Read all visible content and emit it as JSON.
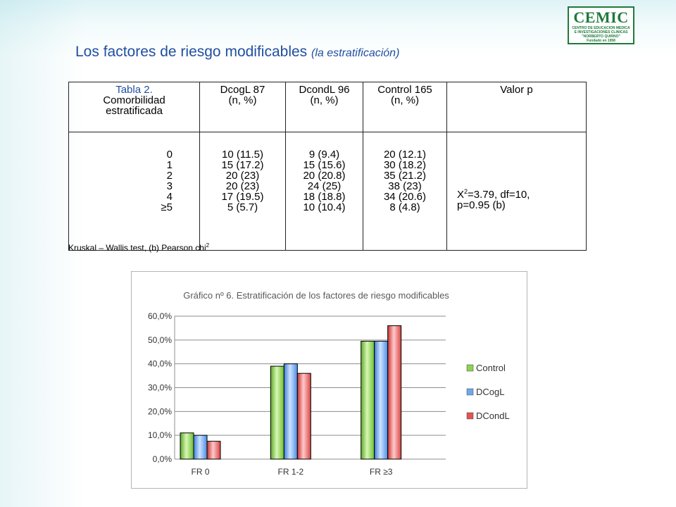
{
  "slide": {
    "title": "Los factores de riesgo modificables",
    "subtitle": "(la estratificación)"
  },
  "logo": {
    "name": "CEMIC",
    "line1": "CENTRO DE EDUCACION MEDICA",
    "line2": "E INVESTIGACIONES CLINICAS",
    "line3": "\"NORBERTO QUIRNO\"",
    "line4": "Fundado en 1958"
  },
  "table": {
    "header": {
      "c1_line1": "Tabla 2.",
      "c1_line2": "Comorbilidad",
      "c1_line3": "estratificada",
      "c2_line1": "DcogL 87",
      "c2_line2": "(n, %)",
      "c3_line1": "DcondL 96",
      "c3_line2": "(n, %)",
      "c4_line1": "Control 165",
      "c4_line2": "(n, %)",
      "c5": "Valor p"
    },
    "rows": [
      {
        "k": "0",
        "a": "10 (11.5)",
        "b": "9 (9.4)",
        "c": "20 (12.1)"
      },
      {
        "k": "1",
        "a": "15 (17.2)",
        "b": "15 (15.6)",
        "c": "30 (18.2)"
      },
      {
        "k": "2",
        "a": "20 (23)",
        "b": "20 (20.8)",
        "c": "35 (21.2)"
      },
      {
        "k": "3",
        "a": "20 (23)",
        "b": "24 (25)",
        "c": "38 (23)"
      },
      {
        "k": "4",
        "a": "17 (19.5)",
        "b": "18 (18.8)",
        "c": "34 (20.6)"
      },
      {
        "k": "≥5",
        "a": "5 (5.7)",
        "b": "10 (10.4)",
        "c": "8 (4.8)"
      }
    ],
    "p_line1_prefix": "X",
    "p_line1_sup": "2",
    "p_line1_rest": "=3.79, df=10,",
    "p_line2": "p=0.95 (b)",
    "footnote_main": "Kruskal – Wallis test, (b) Pearson chi",
    "footnote_sup": "2"
  },
  "chart_data": {
    "type": "bar",
    "title": "Gráfico nº 6. Estratificación de los factores de riesgo modificables",
    "categories": [
      "FR 0",
      "FR 1-2",
      "FR ≥3"
    ],
    "series": [
      {
        "name": "Control",
        "values": [
          11.0,
          39.0,
          49.5
        ],
        "color": "#8fd14f"
      },
      {
        "name": "DCogL",
        "values": [
          10.0,
          40.0,
          49.5
        ],
        "color": "#6fa8ef"
      },
      {
        "name": "DCondL",
        "values": [
          7.5,
          36.0,
          56.0
        ],
        "color": "#e05555"
      }
    ],
    "y_ticks": [
      "0,0%",
      "10,0%",
      "20,0%",
      "30,0%",
      "40,0%",
      "50,0%",
      "60,0%"
    ],
    "ylim": [
      0,
      60
    ],
    "grid": true,
    "legend": "right"
  }
}
